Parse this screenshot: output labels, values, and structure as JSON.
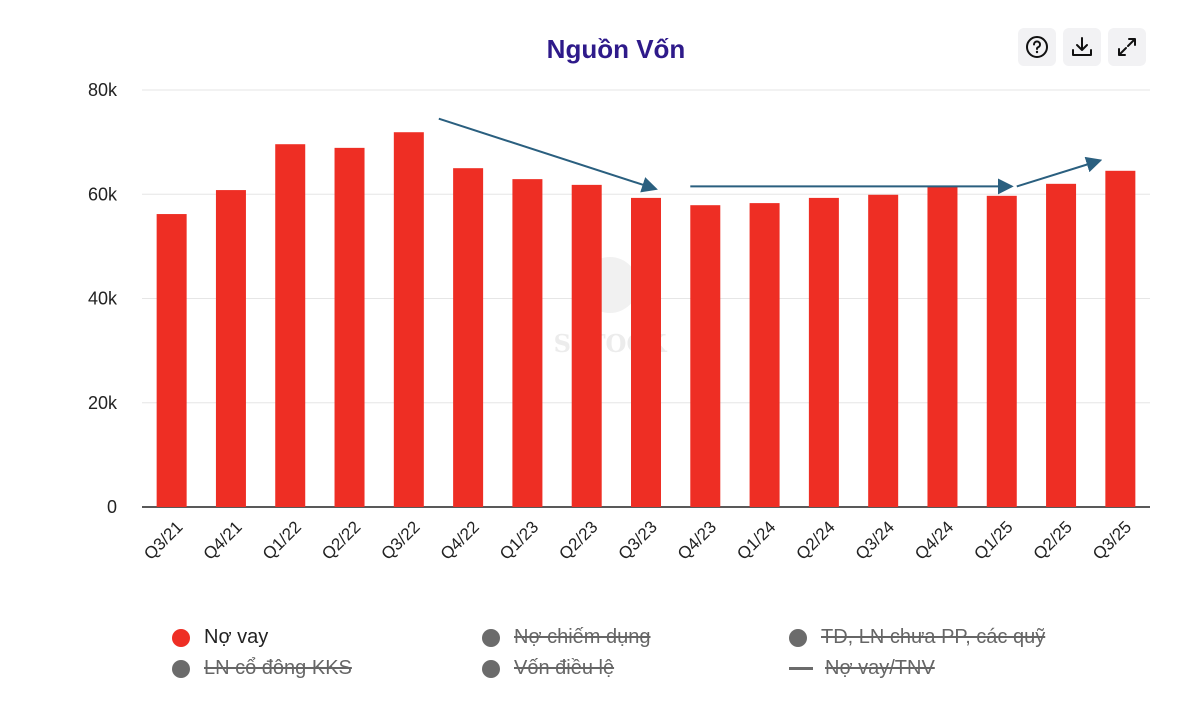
{
  "chart_data": {
    "type": "bar",
    "title": "Nguồn Vốn",
    "categories": [
      "Q3/21",
      "Q4/21",
      "Q1/22",
      "Q2/22",
      "Q3/22",
      "Q4/22",
      "Q1/23",
      "Q2/23",
      "Q3/23",
      "Q4/23",
      "Q1/24",
      "Q2/24",
      "Q3/24",
      "Q4/24",
      "Q1/25",
      "Q2/25",
      "Q3/25"
    ],
    "series": [
      {
        "name": "Nợ vay",
        "color": "#ee2e24",
        "values": [
          56200,
          60800,
          69600,
          68900,
          71900,
          65000,
          62900,
          61800,
          59300,
          57900,
          58300,
          59300,
          59900,
          61600,
          59700,
          62000,
          64500
        ]
      }
    ],
    "ylim": [
      0,
      80000
    ],
    "yticks": [
      {
        "v": 0,
        "label": "0"
      },
      {
        "v": 20000,
        "label": "20k"
      },
      {
        "v": 40000,
        "label": "40k"
      },
      {
        "v": 60000,
        "label": "60k"
      },
      {
        "v": 80000,
        "label": "80k"
      }
    ],
    "grid": true,
    "legend_position": "bottom",
    "legend": [
      {
        "label": "Nợ vay",
        "marker": "dot",
        "active": true,
        "color": "#ee2e24"
      },
      {
        "label": "Nợ chiếm dụng",
        "marker": "dot",
        "active": false,
        "color": "#6b6b6b"
      },
      {
        "label": "TD, LN chưa PP, các quỹ",
        "marker": "dot",
        "active": false,
        "color": "#6b6b6b"
      },
      {
        "label": "LN cổ đông KKS",
        "marker": "dot",
        "active": false,
        "color": "#6b6b6b"
      },
      {
        "label": "Vốn điều lệ",
        "marker": "dot",
        "active": false,
        "color": "#6b6b6b"
      },
      {
        "label": "Nợ vay/TNV",
        "marker": "line",
        "active": false,
        "color": "#6b6b6b"
      }
    ],
    "annotations": [
      {
        "type": "arrow",
        "from": [
          "Q3/22",
          74500
        ],
        "to": [
          "Q3/23",
          61000
        ],
        "color": "#2a5f7f"
      },
      {
        "type": "arrow",
        "from": [
          "Q4/23",
          61500
        ],
        "to": [
          "Q1/25",
          61500
        ],
        "color": "#2a5f7f"
      },
      {
        "type": "arrow",
        "from": [
          "Q1/25",
          61500
        ],
        "to": [
          "Q3/25",
          66500
        ],
        "color": "#2a5f7f"
      }
    ],
    "watermark": "SSTOCK"
  },
  "toolbar": {
    "help_icon": "help-circle-icon",
    "download_icon": "download-icon",
    "expand_icon": "expand-icon"
  }
}
